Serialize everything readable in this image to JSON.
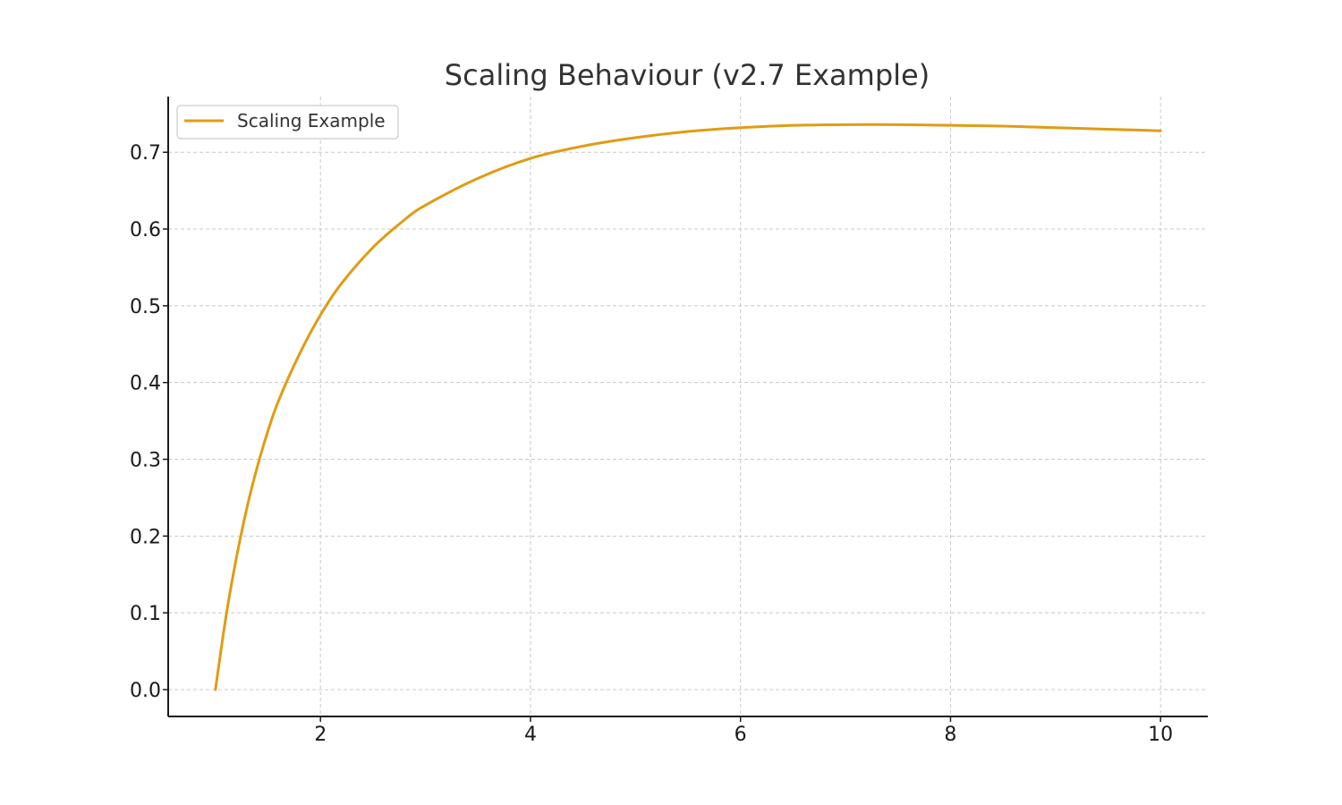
{
  "chart_data": {
    "type": "line",
    "title": "Scaling Behaviour (v2.7 Example)",
    "xlabel": "",
    "ylabel": "",
    "xlim": [
      0.55,
      10.45
    ],
    "ylim": [
      -0.035,
      0.7725
    ],
    "x_ticks": [
      2,
      4,
      6,
      8,
      10
    ],
    "x_tick_labels": [
      "2",
      "4",
      "6",
      "8",
      "10"
    ],
    "y_ticks": [
      0.0,
      0.1,
      0.2,
      0.3,
      0.4,
      0.5,
      0.6,
      0.7
    ],
    "y_tick_labels": [
      "0.0",
      "0.1",
      "0.2",
      "0.3",
      "0.4",
      "0.5",
      "0.6",
      "0.7"
    ],
    "grid": true,
    "legend_position": "top-left",
    "colors": {
      "series": "#e09c12",
      "grid": "#c8c8c8",
      "axis": "#1a1a1a",
      "title": "#333333"
    },
    "series": [
      {
        "name": "Scaling Example",
        "color": "#e09c12",
        "x": [
          1.0,
          1.1,
          1.2,
          1.3,
          1.4,
          1.5,
          1.6,
          1.8,
          2.0,
          2.2,
          2.5,
          2.8,
          3.0,
          3.5,
          4.0,
          4.5,
          5.0,
          5.5,
          6.0,
          6.5,
          7.0,
          7.5,
          8.0,
          8.5,
          9.0,
          9.5,
          10.0
        ],
        "y": [
          0.0,
          0.095,
          0.172,
          0.237,
          0.291,
          0.337,
          0.376,
          0.437,
          0.488,
          0.529,
          0.576,
          0.612,
          0.631,
          0.666,
          0.692,
          0.708,
          0.719,
          0.727,
          0.732,
          0.735,
          0.736,
          0.736,
          0.735,
          0.734,
          0.732,
          0.73,
          0.728
        ]
      }
    ]
  }
}
